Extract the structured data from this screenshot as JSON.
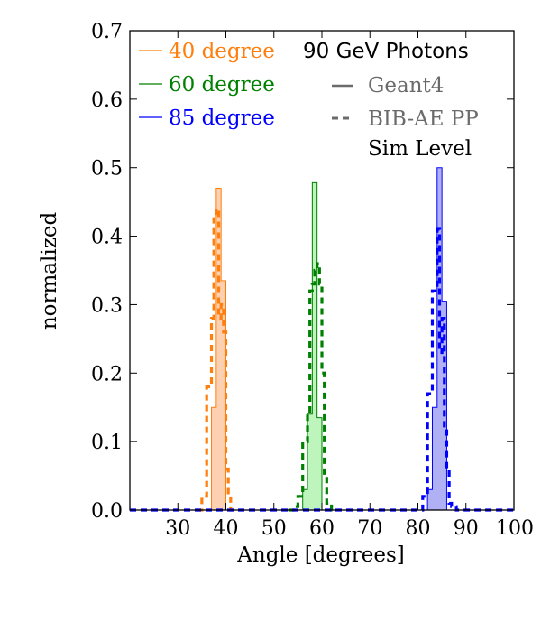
{
  "chart_data": {
    "type": "histogram",
    "xlabel": "Angle [degrees]",
    "ylabel": "normalized",
    "xlim": [
      20,
      100
    ],
    "ylim": [
      0,
      0.7
    ],
    "xticks": [
      30,
      40,
      50,
      60,
      70,
      80,
      90,
      100
    ],
    "yticks": [
      0.0,
      0.1,
      0.2,
      0.3,
      0.4,
      0.5,
      0.6,
      0.7
    ],
    "xtick_labels": [
      "30",
      "40",
      "50",
      "60",
      "70",
      "80",
      "90",
      "100"
    ],
    "ytick_labels": [
      "0.0",
      "0.1",
      "0.2",
      "0.3",
      "0.4",
      "0.5",
      "0.6",
      "0.7"
    ],
    "legend_location": "top-left",
    "annotations": {
      "beam": "90 GeV Photons",
      "solid": "Geant4",
      "dashed": "BIB-AE PP",
      "level": "Sim Level"
    },
    "series": [
      {
        "name": "40 degree",
        "color": "#ff7f0e",
        "fill": "#fdd0b1",
        "geant4": {
          "edges": [
            37,
            38,
            39,
            40,
            41
          ],
          "values": [
            0.15,
            0.47,
            0.335,
            0.0
          ]
        },
        "bibae": {
          "edges": [
            34,
            35,
            36,
            37,
            37.5,
            38,
            38.5,
            39,
            39.5,
            40,
            40.5,
            41,
            42
          ],
          "values": [
            0.0,
            0.02,
            0.18,
            0.28,
            0.43,
            0.44,
            0.28,
            0.3,
            0.26,
            0.06,
            0.02,
            0.0
          ]
        }
      },
      {
        "name": "60 degree",
        "color": "#008000",
        "fill": "#bdf5bd",
        "geant4": {
          "edges": [
            56,
            57,
            58,
            59,
            60,
            61
          ],
          "values": [
            0.03,
            0.14,
            0.478,
            0.135,
            0.0
          ]
        },
        "bibae": {
          "edges": [
            53,
            54,
            55,
            56,
            57,
            57.5,
            58,
            58.5,
            59,
            59.5,
            60,
            60.5,
            61,
            62,
            63
          ],
          "values": [
            0.0,
            0.005,
            0.02,
            0.1,
            0.14,
            0.32,
            0.33,
            0.35,
            0.36,
            0.33,
            0.2,
            0.05,
            0.01,
            0.0
          ]
        }
      },
      {
        "name": "85 degree",
        "color": "#0000ff",
        "fill": "#b0b0f5",
        "geant4": {
          "edges": [
            82,
            83,
            84,
            85,
            86,
            87
          ],
          "values": [
            0.03,
            0.15,
            0.5,
            0.305,
            0.0
          ]
        },
        "bibae": {
          "edges": [
            20,
            21,
            81,
            82,
            83,
            84,
            84.5,
            85,
            85.5,
            86,
            86.5,
            87,
            88,
            100
          ],
          "values": [
            0.0,
            0.0,
            0.02,
            0.17,
            0.32,
            0.41,
            0.23,
            0.28,
            0.12,
            0.06,
            0.01,
            0.005,
            0.0
          ]
        }
      }
    ]
  }
}
